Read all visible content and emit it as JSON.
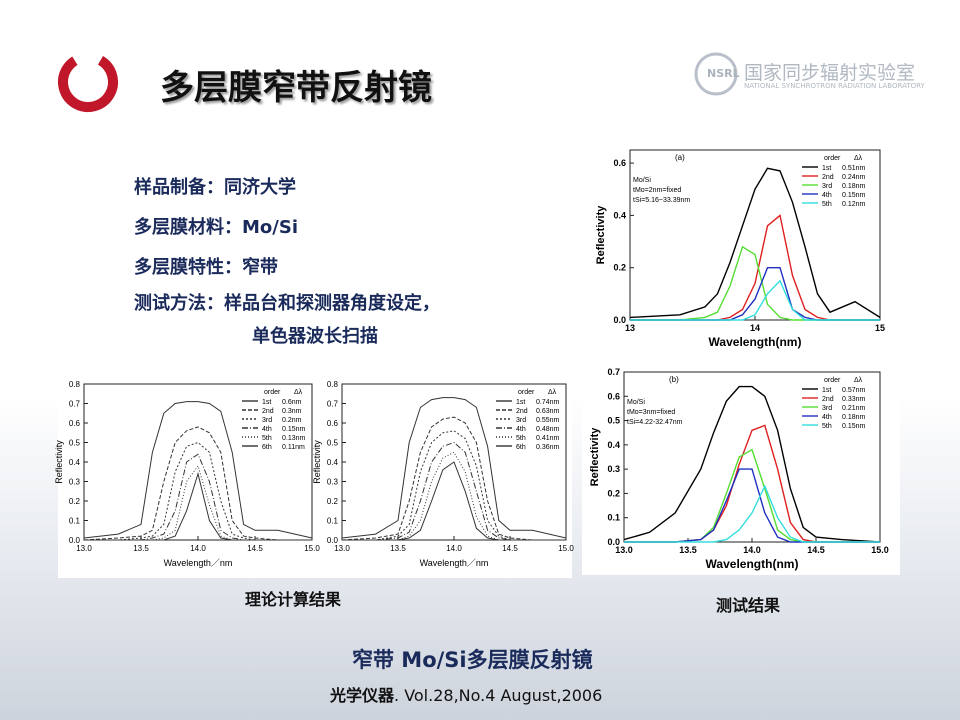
{
  "header": {
    "title": "多层膜窄带反射镜",
    "logo_short": "NSRL",
    "logo_cn": "国家同步辐射实验室",
    "logo_en": "NATIONAL SYNCHROTRON RADIATION LABORATORY"
  },
  "content": {
    "items": [
      "样品制备：同济大学",
      "多层膜材料：Mo/Si",
      "多层膜特性：窄带",
      "测试方法：样品台和探测器角度设定，",
      "单色器波长扫描"
    ]
  },
  "captions": {
    "theory": "理论计算结果",
    "measured": "测试结果"
  },
  "footer": {
    "title": "窄带 Mo/Si多层膜反射镜",
    "citation_cn": "光学仪器",
    "citation": ". Vol.28,No.4  August,2006"
  },
  "chart_data": [
    {
      "type": "line",
      "xlabel": "Wavelength／nm",
      "ylabel": "Reflectivity",
      "legend_title": "order",
      "legend_title2": "Δλ",
      "xlim": [
        13,
        15
      ],
      "xticks": [
        {
          "value": 13,
          "label": "13.0"
        },
        {
          "value": 13.5,
          "label": "13.5"
        },
        {
          "value": 14,
          "label": "14.0"
        },
        {
          "value": 14.5,
          "label": "14.5"
        },
        {
          "value": 15,
          "label": "15.0"
        }
      ],
      "ylim": [
        0,
        0.8
      ],
      "yticks": [
        {
          "value": 0,
          "label": "0.0"
        },
        0.1,
        0.2,
        0.3,
        0.4,
        0.5,
        0.6,
        0.7,
        0.8
      ],
      "x": [
        13.0,
        13.3,
        13.5,
        13.6,
        13.7,
        13.8,
        13.9,
        14.0,
        14.1,
        14.2,
        14.3,
        14.4,
        14.5,
        14.7,
        15.0
      ],
      "series": [
        {
          "name": "1st",
          "dl": "0.6nm",
          "color": "#333333",
          "dash": "none",
          "values": [
            0.01,
            0.03,
            0.08,
            0.45,
            0.65,
            0.7,
            0.71,
            0.71,
            0.7,
            0.66,
            0.45,
            0.08,
            0.05,
            0.05,
            0.01
          ]
        },
        {
          "name": "2nd",
          "dl": "0.3nm",
          "color": "#333333",
          "dash": "4 2",
          "values": [
            0,
            0.01,
            0.02,
            0.05,
            0.3,
            0.5,
            0.56,
            0.58,
            0.55,
            0.45,
            0.1,
            0.02,
            0.01,
            0,
            0
          ]
        },
        {
          "name": "3rd",
          "dl": "0.2nm",
          "color": "#333333",
          "dash": "2 2",
          "values": [
            0,
            0,
            0.01,
            0.02,
            0.08,
            0.35,
            0.48,
            0.5,
            0.45,
            0.2,
            0.03,
            0.01,
            0,
            0,
            0
          ]
        },
        {
          "name": "4th",
          "dl": "0.15nm",
          "color": "#333333",
          "dash": "6 2 1 2",
          "values": [
            0,
            0,
            0,
            0.01,
            0.03,
            0.15,
            0.4,
            0.44,
            0.3,
            0.05,
            0.01,
            0,
            0,
            0,
            0
          ]
        },
        {
          "name": "5th",
          "dl": "0.13nm",
          "color": "#333333",
          "dash": "1 2",
          "values": [
            0,
            0,
            0,
            0,
            0.01,
            0.05,
            0.3,
            0.38,
            0.18,
            0.02,
            0,
            0,
            0,
            0,
            0
          ]
        },
        {
          "name": "6th",
          "dl": "0.11nm",
          "color": "#333333",
          "dash": "none",
          "values": [
            0,
            0,
            0,
            0,
            0,
            0.02,
            0.15,
            0.34,
            0.1,
            0.01,
            0,
            0,
            0,
            0,
            0
          ]
        }
      ]
    },
    {
      "type": "line",
      "xlabel": "Wavelength／nm",
      "ylabel": "Reflectivity",
      "legend_title": "order",
      "legend_title2": "Δλ",
      "xlim": [
        13,
        15
      ],
      "xticks": [
        {
          "value": 13,
          "label": "13.0"
        },
        {
          "value": 13.5,
          "label": "13.5"
        },
        {
          "value": 14,
          "label": "14.0"
        },
        {
          "value": 14.5,
          "label": "14.5"
        },
        {
          "value": 15,
          "label": "15.0"
        }
      ],
      "ylim": [
        0,
        0.8
      ],
      "yticks": [
        {
          "value": 0,
          "label": "0.0"
        },
        0.1,
        0.2,
        0.3,
        0.4,
        0.5,
        0.6,
        0.7,
        0.8
      ],
      "x": [
        13.0,
        13.3,
        13.5,
        13.6,
        13.7,
        13.8,
        13.9,
        14.0,
        14.1,
        14.2,
        14.3,
        14.4,
        14.5,
        14.7,
        15.0
      ],
      "series": [
        {
          "name": "1st",
          "dl": "0.74nm",
          "color": "#333333",
          "dash": "none",
          "values": [
            0.01,
            0.03,
            0.1,
            0.5,
            0.68,
            0.72,
            0.73,
            0.73,
            0.72,
            0.68,
            0.48,
            0.1,
            0.05,
            0.05,
            0.01
          ]
        },
        {
          "name": "2nd",
          "dl": "0.63nm",
          "color": "#333333",
          "dash": "4 2",
          "values": [
            0,
            0.01,
            0.03,
            0.2,
            0.45,
            0.58,
            0.62,
            0.63,
            0.6,
            0.5,
            0.2,
            0.03,
            0.01,
            0,
            0
          ]
        },
        {
          "name": "3rd",
          "dl": "0.55nm",
          "color": "#333333",
          "dash": "2 2",
          "values": [
            0,
            0,
            0.02,
            0.08,
            0.35,
            0.5,
            0.55,
            0.56,
            0.52,
            0.38,
            0.1,
            0.02,
            0,
            0,
            0
          ]
        },
        {
          "name": "4th",
          "dl": "0.48nm",
          "color": "#333333",
          "dash": "6 2 1 2",
          "values": [
            0,
            0,
            0.01,
            0.04,
            0.2,
            0.4,
            0.48,
            0.5,
            0.45,
            0.25,
            0.05,
            0.01,
            0,
            0,
            0
          ]
        },
        {
          "name": "5th",
          "dl": "0.41nm",
          "color": "#333333",
          "dash": "1 2",
          "values": [
            0,
            0,
            0,
            0.02,
            0.1,
            0.3,
            0.42,
            0.45,
            0.35,
            0.12,
            0.02,
            0,
            0,
            0,
            0
          ]
        },
        {
          "name": "6th",
          "dl": "0.36nm",
          "color": "#333333",
          "dash": "none",
          "values": [
            0,
            0,
            0,
            0.01,
            0.05,
            0.2,
            0.36,
            0.4,
            0.25,
            0.06,
            0.01,
            0,
            0,
            0,
            0
          ]
        }
      ]
    },
    {
      "type": "line",
      "panel": "(a)",
      "xlabel": "Wavelength(nm)",
      "ylabel": "Reflectivity",
      "legend_title": "order",
      "legend_title2": "Δλ",
      "annotations": [
        "Mo/Si",
        "tMo=2nm=fixed",
        "tSi=5.16~33.39nm"
      ],
      "xlim": [
        13,
        15
      ],
      "xticks": [
        13,
        14,
        15
      ],
      "ylim": [
        0,
        0.65
      ],
      "yticks": [
        {
          "value": 0,
          "label": "0.0"
        },
        0.2,
        0.4,
        0.6
      ],
      "x": [
        13.0,
        13.4,
        13.6,
        13.7,
        13.8,
        13.9,
        14.0,
        14.1,
        14.2,
        14.3,
        14.4,
        14.5,
        14.6,
        14.8,
        15.0
      ],
      "series": [
        {
          "name": "1st",
          "dl": "0.51nm",
          "color": "#000000",
          "dash": "none",
          "values": [
            0.01,
            0.02,
            0.05,
            0.1,
            0.22,
            0.36,
            0.5,
            0.58,
            0.57,
            0.45,
            0.28,
            0.1,
            0.03,
            0.07,
            0.01
          ]
        },
        {
          "name": "2nd",
          "dl": "0.24nm",
          "color": "#e02020",
          "dash": "none",
          "values": [
            0,
            0,
            0,
            0,
            0.01,
            0.04,
            0.14,
            0.36,
            0.4,
            0.17,
            0.04,
            0.01,
            0,
            0,
            0
          ]
        },
        {
          "name": "3rd",
          "dl": "0.18nm",
          "color": "#55dd33",
          "dash": "none",
          "values": [
            0,
            0,
            0.01,
            0.03,
            0.13,
            0.28,
            0.25,
            0.06,
            0.01,
            0,
            0,
            0,
            0,
            0,
            0
          ]
        },
        {
          "name": "4th",
          "dl": "0.15nm",
          "color": "#2030c0",
          "dash": "none",
          "values": [
            0,
            0,
            0,
            0,
            0,
            0.02,
            0.08,
            0.2,
            0.2,
            0.04,
            0.01,
            0,
            0,
            0,
            0
          ]
        },
        {
          "name": "5th",
          "dl": "0.12nm",
          "color": "#33dddd",
          "dash": "none",
          "values": [
            0,
            0,
            0,
            0,
            0,
            0,
            0.02,
            0.1,
            0.15,
            0.04,
            0,
            0,
            0,
            0,
            0
          ]
        }
      ]
    },
    {
      "type": "line",
      "panel": "(b)",
      "xlabel": "Wavelength(nm)",
      "ylabel": "Reflectivity",
      "legend_title": "order",
      "legend_title2": "Δλ",
      "annotations": [
        "Mo/Si",
        "tMo=3nm=fixed",
        "tSi=4.22-32.47nm"
      ],
      "xlim": [
        13,
        15
      ],
      "xticks": [
        {
          "value": 13,
          "label": "13.0"
        },
        {
          "value": 13.5,
          "label": "13.5"
        },
        {
          "value": 14,
          "label": "14.0"
        },
        {
          "value": 14.5,
          "label": "14.5"
        },
        {
          "value": 15,
          "label": "15.0"
        }
      ],
      "ylim": [
        0,
        0.7
      ],
      "yticks": [
        {
          "value": 0,
          "label": "0.0"
        },
        0.1,
        0.2,
        0.3,
        0.4,
        0.5,
        0.6,
        0.7
      ],
      "x": [
        13.0,
        13.2,
        13.4,
        13.6,
        13.7,
        13.8,
        13.9,
        14.0,
        14.1,
        14.2,
        14.3,
        14.4,
        14.5,
        14.7,
        15.0
      ],
      "series": [
        {
          "name": "1st",
          "dl": "0.57nm",
          "color": "#000000",
          "dash": "none",
          "values": [
            0.01,
            0.04,
            0.12,
            0.3,
            0.45,
            0.58,
            0.64,
            0.64,
            0.6,
            0.46,
            0.22,
            0.06,
            0.02,
            0.01,
            0
          ]
        },
        {
          "name": "2nd",
          "dl": "0.33nm",
          "color": "#e02020",
          "dash": "none",
          "values": [
            0,
            0,
            0,
            0.01,
            0.05,
            0.15,
            0.32,
            0.46,
            0.48,
            0.3,
            0.08,
            0.01,
            0,
            0,
            0
          ]
        },
        {
          "name": "3rd",
          "dl": "0.21nm",
          "color": "#55dd33",
          "dash": "none",
          "values": [
            0,
            0,
            0,
            0.01,
            0.06,
            0.2,
            0.35,
            0.38,
            0.22,
            0.05,
            0.01,
            0,
            0,
            0,
            0
          ]
        },
        {
          "name": "4th",
          "dl": "0.18nm",
          "color": "#2030c0",
          "dash": "none",
          "values": [
            0,
            0,
            0,
            0.01,
            0.05,
            0.17,
            0.3,
            0.3,
            0.12,
            0.02,
            0,
            0,
            0,
            0,
            0
          ]
        },
        {
          "name": "5th",
          "dl": "0.15nm",
          "color": "#33dddd",
          "dash": "none",
          "values": [
            0,
            0,
            0,
            0,
            0,
            0.01,
            0.05,
            0.12,
            0.23,
            0.1,
            0.02,
            0,
            0,
            0,
            0
          ]
        }
      ]
    }
  ]
}
